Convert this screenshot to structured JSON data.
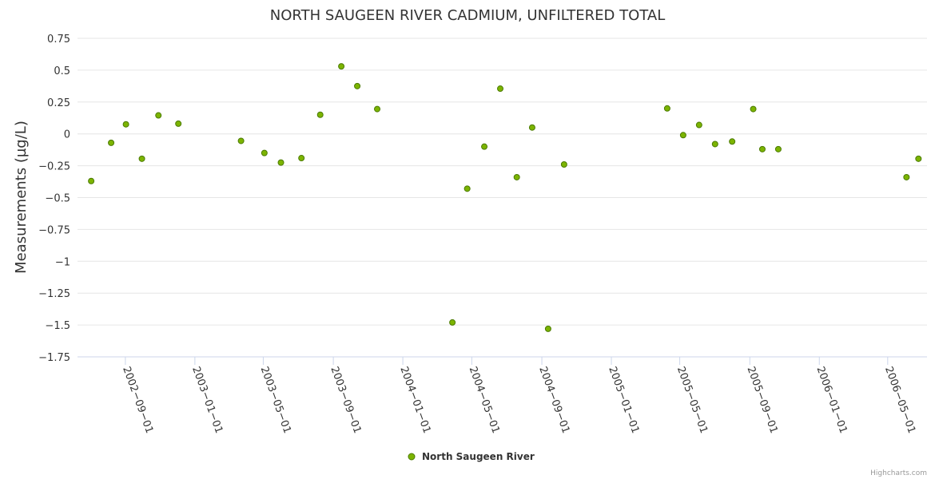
{
  "chart_data": {
    "type": "scatter",
    "title": "NORTH SAUGEEN RIVER CADMIUM, UNFILTERED TOTAL",
    "ylabel": "Measurements (µg/L)",
    "xlabel": "",
    "ylim": [
      -1.75,
      0.75
    ],
    "yticks": [
      0.75,
      0.5,
      0.25,
      0,
      -0.25,
      -0.5,
      -0.75,
      -1,
      -1.25,
      -1.5,
      -1.75
    ],
    "ytick_labels": [
      "0.75",
      "0.5",
      "0.25",
      "0",
      "−0.25",
      "−0.5",
      "−0.75",
      "−1",
      "−1.25",
      "−1.5",
      "−1.75"
    ],
    "xlim": [
      "2002-06-09",
      "2006-07-09"
    ],
    "xticks": [
      "2002-09-01",
      "2003-01-01",
      "2003-05-01",
      "2003-09-01",
      "2004-01-01",
      "2004-05-01",
      "2004-09-01",
      "2005-01-01",
      "2005-05-01",
      "2005-09-01",
      "2006-01-01",
      "2006-05-01"
    ],
    "grid": true,
    "legend_position": "bottom-center",
    "series": [
      {
        "name": "North Saugeen River",
        "color": "#7cb400",
        "border": "#4a7a00",
        "points": [
          [
            "2002-07-03",
            -0.37
          ],
          [
            "2002-08-07",
            -0.07
          ],
          [
            "2002-09-02",
            0.075
          ],
          [
            "2002-09-30",
            -0.195
          ],
          [
            "2002-10-29",
            0.145
          ],
          [
            "2002-12-03",
            0.08
          ],
          [
            "2003-03-23",
            -0.055
          ],
          [
            "2003-05-03",
            -0.15
          ],
          [
            "2003-06-01",
            -0.225
          ],
          [
            "2003-07-07",
            -0.19
          ],
          [
            "2003-08-09",
            0.15
          ],
          [
            "2003-09-15",
            0.53
          ],
          [
            "2003-10-13",
            0.375
          ],
          [
            "2003-11-17",
            0.195
          ],
          [
            "2004-03-28",
            -1.48
          ],
          [
            "2004-04-23",
            -0.43
          ],
          [
            "2004-05-23",
            -0.1
          ],
          [
            "2004-06-20",
            0.355
          ],
          [
            "2004-07-19",
            -0.34
          ],
          [
            "2004-08-15",
            0.05
          ],
          [
            "2004-09-12",
            -1.53
          ],
          [
            "2004-10-10",
            -0.24
          ],
          [
            "2005-04-09",
            0.2
          ],
          [
            "2005-05-07",
            -0.01
          ],
          [
            "2005-06-04",
            0.07
          ],
          [
            "2005-07-02",
            -0.08
          ],
          [
            "2005-08-01",
            -0.06
          ],
          [
            "2005-09-07",
            0.195
          ],
          [
            "2005-09-23",
            -0.12
          ],
          [
            "2005-10-21",
            -0.12
          ],
          [
            "2006-06-03",
            -0.34
          ],
          [
            "2006-06-24",
            -0.195
          ]
        ]
      }
    ]
  },
  "credits": "Highcharts.com"
}
